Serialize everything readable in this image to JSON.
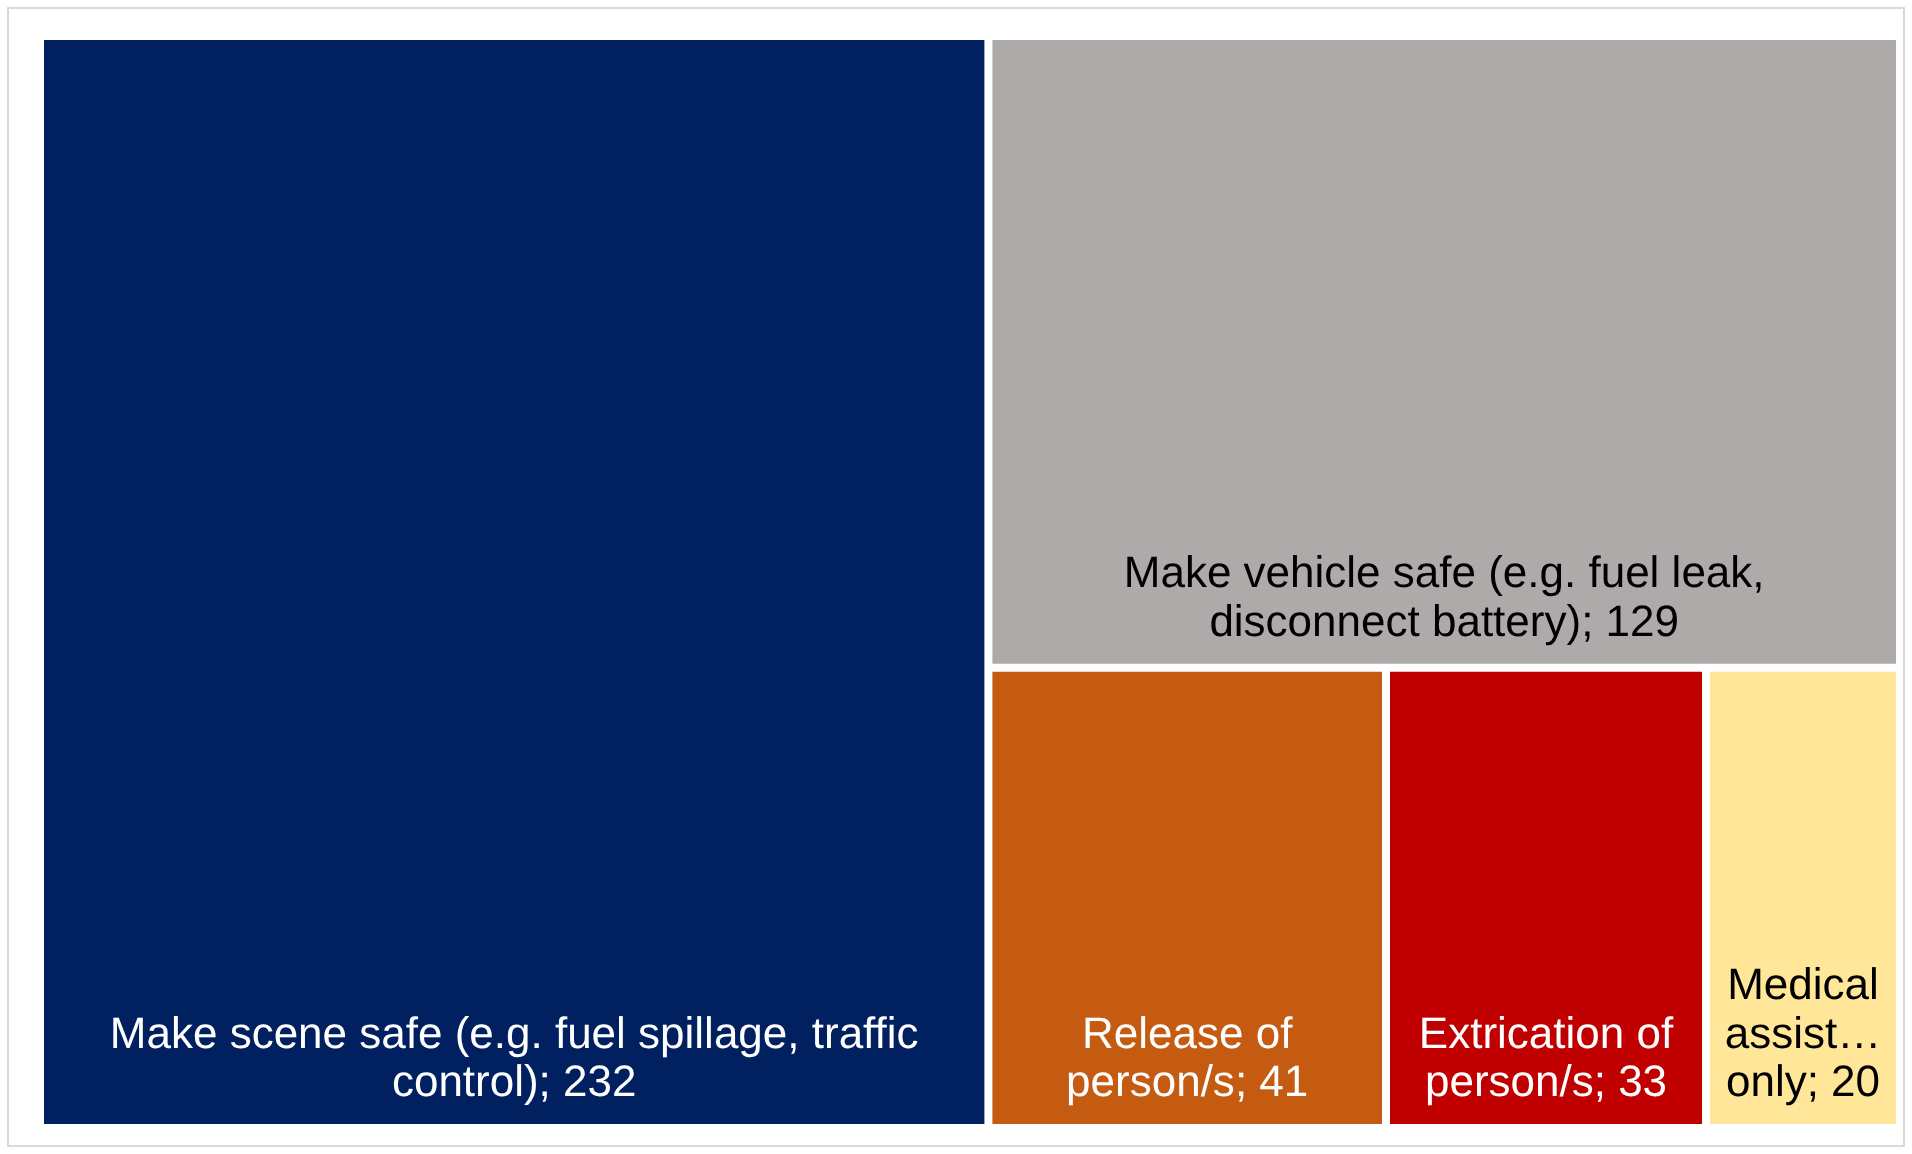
{
  "chart_data": {
    "type": "other",
    "categories": [
      "Make scene safe (e.g. fuel spillage, traffic control)",
      "Make vehicle safe (e.g. fuel leak, disconnect battery)",
      "Release of person/s",
      "Extrication of person/s",
      "Medical assist… only"
    ],
    "values": [
      232,
      129,
      41,
      33,
      20
    ],
    "value_labels": [
      "; 232",
      "; 129",
      "; 41",
      "; 33",
      "; 20"
    ],
    "colors": [
      "#002060",
      "#aeaaaa",
      "#c55a11",
      "#c00000",
      "#ffe699"
    ]
  }
}
